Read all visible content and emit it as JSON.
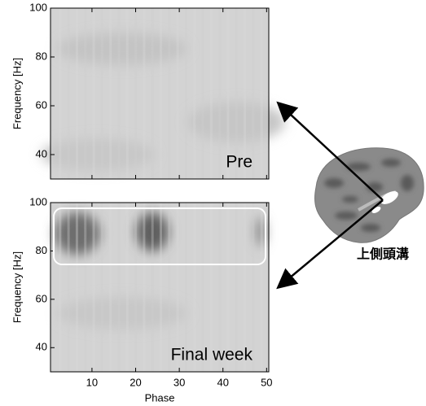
{
  "chart_data": [
    {
      "type": "heatmap",
      "annotation": "Pre",
      "y_label": "Frequency [Hz]",
      "xlim": [
        0.5,
        50.5
      ],
      "xticks": [
        10,
        20,
        30,
        40,
        50
      ],
      "ylim": [
        30,
        100
      ],
      "yticks": [
        40,
        60,
        80,
        100
      ]
    },
    {
      "type": "heatmap",
      "annotation": "Final week",
      "x_label": "Phase",
      "y_label": "Frequency [Hz]",
      "xlim": [
        0.5,
        50.5
      ],
      "xticks": [
        10,
        20,
        30,
        40,
        50
      ],
      "ylim": [
        30,
        100
      ],
      "yticks": [
        40,
        60,
        80,
        100
      ]
    }
  ],
  "brain_label": "上側頭溝"
}
